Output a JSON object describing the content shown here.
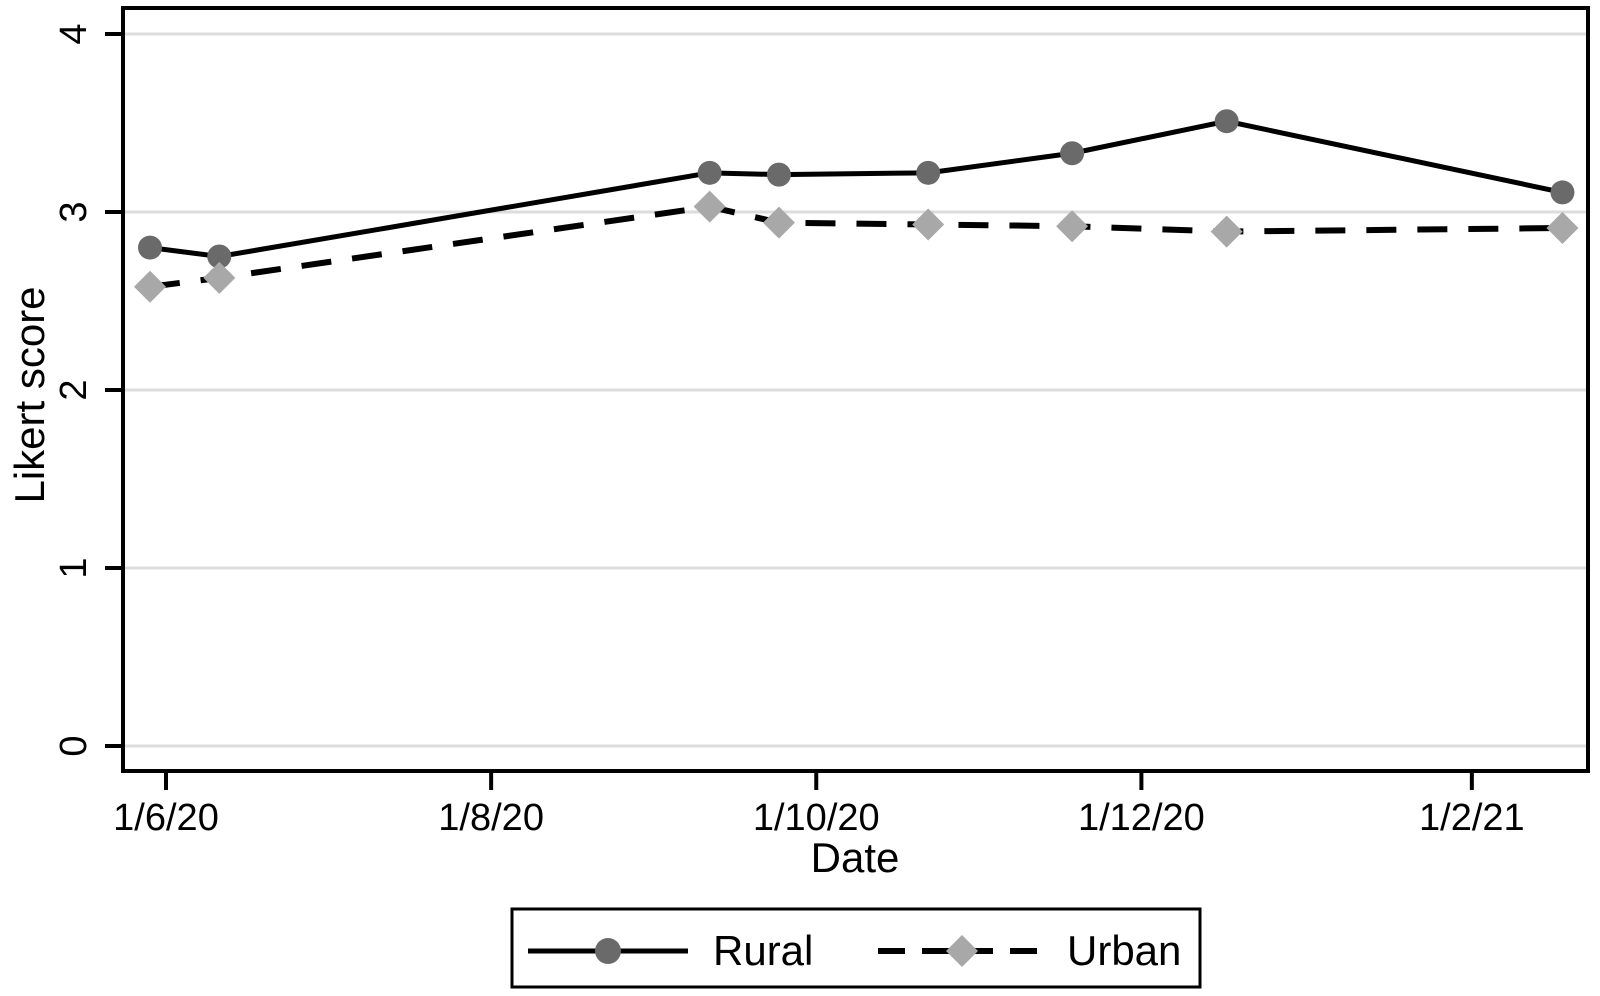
{
  "chart_data": {
    "type": "line",
    "title": "",
    "xlabel": "Date",
    "ylabel": "Likert score",
    "x_axis": {
      "tick_labels": [
        "1/6/20",
        "1/8/20",
        "1/10/20",
        "1/12/20",
        "1/2/21"
      ],
      "tick_positions_days_from_first_tick": [
        0,
        61,
        122,
        183,
        245
      ],
      "domain_days_from_first_tick": [
        -8,
        267
      ]
    },
    "y_axis": {
      "tick_labels": [
        "0",
        "1",
        "2",
        "3",
        "4"
      ],
      "tick_values": [
        0,
        1,
        2,
        3,
        4
      ],
      "range": [
        -0.14,
        4.15
      ]
    },
    "grid": {
      "horizontal": true,
      "vertical": false,
      "color": "#dcdcdc"
    },
    "x_days_from_first_tick": [
      -3,
      10,
      102,
      115,
      143,
      170,
      199,
      262
    ],
    "series": [
      {
        "name": "Rural",
        "marker": "circle",
        "marker_color": "#6a6a6a",
        "line_style": "solid",
        "line_color": "#000000",
        "values": [
          2.8,
          2.75,
          3.22,
          3.21,
          3.22,
          3.33,
          3.51,
          3.11
        ]
      },
      {
        "name": "Urban",
        "marker": "diamond",
        "marker_color": "#a8a8a8",
        "line_style": "dashed",
        "line_color": "#000000",
        "values": [
          2.58,
          2.63,
          3.03,
          2.94,
          2.93,
          2.92,
          2.89,
          2.91
        ]
      }
    ],
    "legend": {
      "position": "bottom-center",
      "bordered": true,
      "entries": [
        "Rural",
        "Urban"
      ]
    }
  }
}
